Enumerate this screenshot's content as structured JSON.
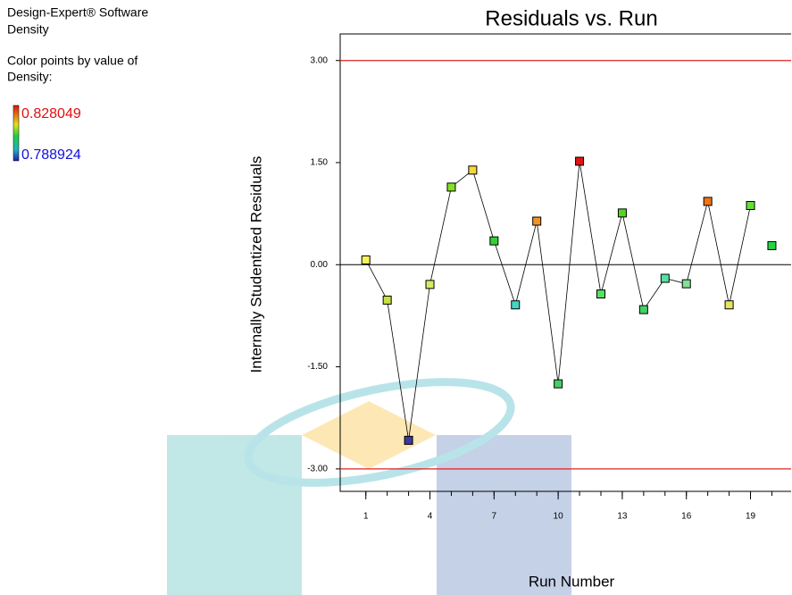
{
  "chart_data": {
    "type": "scatter",
    "title": "Residuals vs. Run",
    "software": "Design-Expert® Software",
    "response": "Density",
    "color_note": "Color points by value of",
    "color_variable": "Density:",
    "color_max": "0.828049",
    "color_min": "0.788924",
    "x_label": "Run Number",
    "y_label": "Internally Studentized Residuals",
    "x": [
      1,
      2,
      3,
      4,
      5,
      6,
      7,
      8,
      9,
      10,
      11,
      12,
      13,
      14,
      15,
      16,
      17,
      18,
      19,
      20
    ],
    "series": [
      {
        "values": [
          0.07,
          -0.52,
          -2.58,
          -0.29,
          1.14,
          1.39,
          0.35,
          -0.59,
          0.64,
          -1.75,
          1.52,
          -0.43,
          0.76,
          -0.66,
          -0.2,
          -0.28,
          0.93,
          -0.59,
          0.87,
          0.28
        ],
        "colors": [
          "#f4f45a",
          "#c8e040",
          "#3a3aa0",
          "#d4ec64",
          "#84e024",
          "#f2d83c",
          "#34d034",
          "#48d4c4",
          "#f09424",
          "#44d064",
          "#e01414",
          "#58e064",
          "#58d424",
          "#44d064",
          "#54e0a4",
          "#84e094",
          "#f07414",
          "#e4e464",
          "#64e034",
          "#24d444"
        ]
      }
    ],
    "connected_runs": 19,
    "xlim": [
      -0.2,
      20.9
    ],
    "ylim": [
      -3.33,
      3.39
    ],
    "xticks": [
      1,
      4,
      7,
      10,
      13,
      16,
      19
    ],
    "yticks": [
      {
        "value": -3,
        "label": "-3.00"
      },
      {
        "value": -1.5,
        "label": "-1.50"
      },
      {
        "value": 0,
        "label": "0.00"
      },
      {
        "value": 1.5,
        "label": "1.50"
      },
      {
        "value": 3,
        "label": "3.00"
      }
    ],
    "limit_lines": [
      3,
      -3
    ],
    "limit_color": "#e02020",
    "reference_line": 0
  }
}
